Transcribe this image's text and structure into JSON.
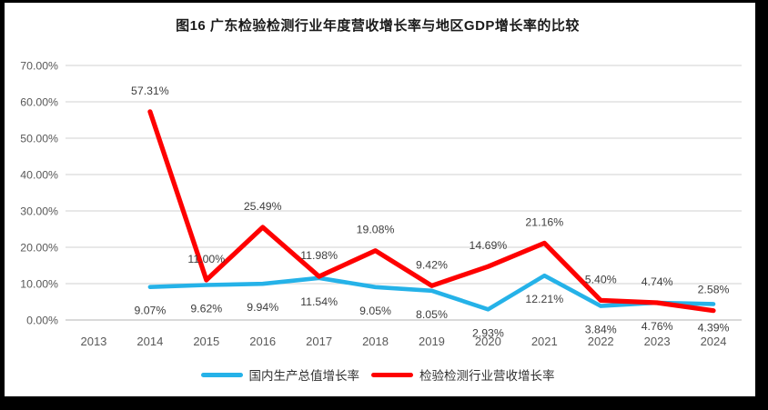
{
  "page": {
    "background": "#ffffff",
    "frame_color": "#000000"
  },
  "chart_data": {
    "type": "line",
    "title": "图16 广东检验检测行业年度营收增长率与地区GDP增长率的比较",
    "categories": [
      "2013",
      "2014",
      "2015",
      "2016",
      "2017",
      "2018",
      "2019",
      "2020",
      "2021",
      "2022",
      "2023",
      "2024"
    ],
    "series": [
      {
        "name": "国内生产总值增长率",
        "color": "#25B2E8",
        "label_position": "below",
        "values": [
          null,
          9.07,
          9.62,
          9.94,
          11.54,
          9.05,
          8.05,
          2.93,
          12.21,
          3.84,
          4.76,
          4.39
        ],
        "labels": [
          null,
          "9.07%",
          "9.62%",
          "9.94%",
          "11.54%",
          "9.05%",
          "8.05%",
          "2.93%",
          "12.21%",
          "3.84%",
          "4.76%",
          "4.39%"
        ]
      },
      {
        "name": "检验检测行业营收增长率",
        "color": "#FE0000",
        "label_position": "above",
        "values": [
          null,
          57.31,
          11.0,
          25.49,
          11.98,
          19.08,
          9.42,
          14.69,
          21.16,
          5.4,
          4.74,
          2.58
        ],
        "labels": [
          null,
          "57.31%",
          "11.00%",
          "25.49%",
          "11.98%",
          "19.08%",
          "9.42%",
          "14.69%",
          "21.16%",
          "5.40%",
          "4.74%",
          "2.58%"
        ]
      }
    ],
    "y_axis": {
      "min": 0,
      "max": 70,
      "step": 10,
      "tick_labels": [
        "0.00%",
        "10.00%",
        "20.00%",
        "30.00%",
        "40.00%",
        "50.00%",
        "60.00%",
        "70.00%"
      ]
    },
    "grid": true,
    "legend_position": "bottom",
    "colors": {
      "gridline": "#d9d9d9",
      "axis_line": "#c3c3c3",
      "tick_text": "#595959",
      "data_label_text": "#3d3d3d"
    }
  }
}
